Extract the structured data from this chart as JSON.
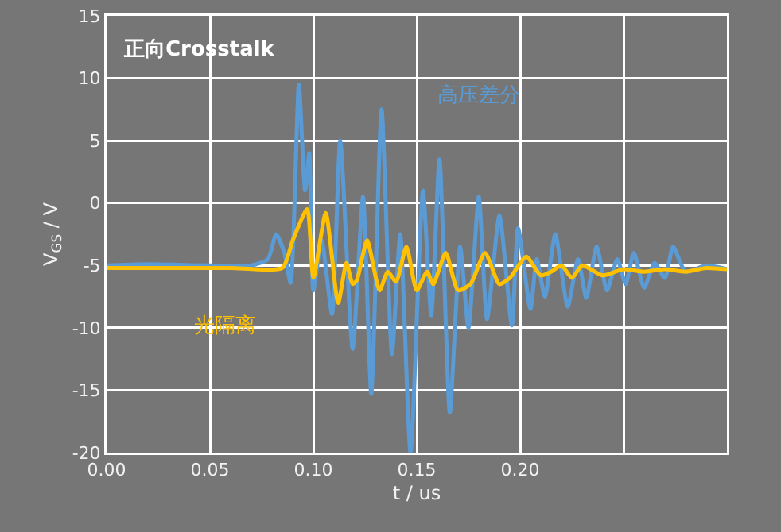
{
  "chart_data": {
    "type": "line",
    "title": "正向Crosstalk",
    "xlabel": "t / us",
    "ylabel": "V$_{GS}$ / V",
    "xlim": [
      0,
      0.3
    ],
    "xticks": [
      {
        "value": 0,
        "label": "0.00"
      },
      {
        "value": 0.05,
        "label": "0.05"
      },
      {
        "value": 0.1,
        "label": "0.10"
      },
      {
        "value": 0.15,
        "label": "0.15"
      },
      {
        "value": 0.2,
        "label": "0.20"
      },
      {
        "value": 0.25,
        "label": null
      }
    ],
    "ylim": [
      -20,
      15
    ],
    "yticks": [
      -20,
      -15,
      -10,
      -5,
      0,
      5,
      10,
      15
    ],
    "grid": true,
    "legend": false,
    "marker": "none",
    "line_style": "solid",
    "series": [
      {
        "name": "高压差分",
        "color": "#5b9bd5",
        "x": [
          0,
          0.02,
          0.05,
          0.07,
          0.078,
          0.082,
          0.086,
          0.089,
          0.093,
          0.096,
          0.098,
          0.1,
          0.104,
          0.109,
          0.113,
          0.119,
          0.124,
          0.128,
          0.133,
          0.138,
          0.142,
          0.147,
          0.153,
          0.157,
          0.161,
          0.166,
          0.171,
          0.175,
          0.18,
          0.184,
          0.19,
          0.196,
          0.199,
          0.205,
          0.208,
          0.212,
          0.217,
          0.223,
          0.228,
          0.232,
          0.237,
          0.242,
          0.247,
          0.251,
          0.255,
          0.26,
          0.265,
          0.27,
          0.274,
          0.28,
          0.29,
          0.3
        ],
        "values": [
          -5,
          -4.9,
          -5,
          -5,
          -4.5,
          -2.5,
          -4,
          -6.4,
          9.5,
          1,
          4,
          -7,
          -3,
          -8.9,
          5,
          -11.7,
          0.5,
          -15.3,
          7.5,
          -12.1,
          -2.5,
          -20,
          1,
          -9,
          3.5,
          -16.8,
          -3.5,
          -10,
          0.5,
          -9.3,
          -1,
          -9.8,
          -2,
          -8.5,
          -4.5,
          -7.5,
          -2.5,
          -8.3,
          -4.5,
          -7.6,
          -3.5,
          -7,
          -4.5,
          -6.5,
          -4,
          -6.8,
          -4.8,
          -6,
          -3.5,
          -5.5,
          -5,
          -5.3
        ]
      },
      {
        "name": "光隔离",
        "color": "#ffc000",
        "x": [
          0,
          0.03,
          0.06,
          0.085,
          0.09,
          0.097,
          0.1,
          0.106,
          0.112,
          0.116,
          0.119,
          0.121,
          0.126,
          0.132,
          0.136,
          0.14,
          0.145,
          0.15,
          0.155,
          0.158,
          0.164,
          0.17,
          0.176,
          0.183,
          0.19,
          0.195,
          0.203,
          0.21,
          0.215,
          0.22,
          0.225,
          0.23,
          0.24,
          0.25,
          0.26,
          0.27,
          0.28,
          0.29,
          0.3
        ],
        "values": [
          -5.2,
          -5.2,
          -5.2,
          -5.2,
          -3,
          -0.5,
          -6,
          -0.8,
          -8,
          -4.8,
          -6.5,
          -6.2,
          -3,
          -7,
          -5.5,
          -6.3,
          -3.5,
          -7,
          -5.5,
          -6.5,
          -4,
          -7,
          -6.5,
          -4,
          -6.5,
          -6,
          -4.3,
          -5.8,
          -5.5,
          -5,
          -6,
          -5,
          -5.8,
          -5.3,
          -5.5,
          -5.3,
          -5.5,
          -5.2,
          -5.3
        ]
      }
    ]
  }
}
